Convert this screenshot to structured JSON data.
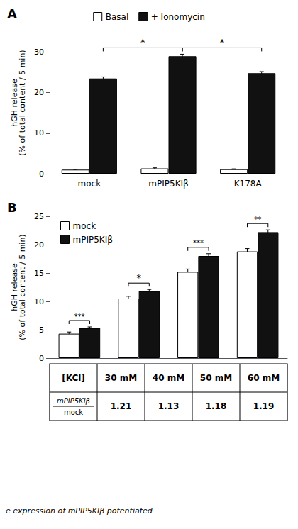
{
  "chart_data": [
    {
      "type": "bar",
      "title": "A",
      "categories": [
        "mock",
        "mPIP5KIβ",
        "K178A"
      ],
      "series": [
        {
          "name": "Basal",
          "color": "#ffffff",
          "values": [
            1.0,
            1.3,
            1.1
          ],
          "errors": [
            0.1,
            0.15,
            0.1
          ]
        },
        {
          "name": "+ Ionomycin",
          "color": "#111111",
          "values": [
            23.5,
            29.0,
            24.8
          ],
          "errors": [
            0.4,
            0.5,
            0.4
          ]
        }
      ],
      "ylabel": "hGH release\n(% of total content / 5 min)",
      "ylim": [
        0,
        35
      ],
      "yticks": [
        0,
        10,
        20,
        30
      ],
      "grid": false,
      "legend": "top",
      "annotations": [
        {
          "text": "*",
          "series": "+ Ionomycin",
          "between": [
            "mock",
            "mPIP5KIβ"
          ]
        },
        {
          "text": "*",
          "series": "+ Ionomycin",
          "between": [
            "mPIP5KIβ",
            "K178A"
          ]
        }
      ]
    },
    {
      "type": "bar",
      "title": "B",
      "categories": [
        "30 mM",
        "40 mM",
        "50 mM",
        "60 mM"
      ],
      "series": [
        {
          "name": "mock",
          "color": "#ffffff",
          "values": [
            4.3,
            10.5,
            15.2,
            18.8
          ],
          "errors": [
            0.3,
            0.4,
            0.5,
            0.5
          ]
        },
        {
          "name": "mPIP5KIβ",
          "color": "#111111",
          "values": [
            5.3,
            11.8,
            18.0,
            22.2
          ],
          "errors": [
            0.2,
            0.3,
            0.4,
            0.4
          ]
        }
      ],
      "ylabel": "hGH release\n(% of total content / 5 min)",
      "ylim": [
        0,
        25
      ],
      "yticks": [
        0,
        5,
        10,
        15,
        20,
        25
      ],
      "grid": false,
      "legend": "left",
      "tick_labels": "y",
      "annotations": [
        {
          "text": "***",
          "category": "30 mM",
          "between": [
            "mock",
            "mPIP5KIβ"
          ]
        },
        {
          "text": "*",
          "category": "40 mM",
          "between": [
            "mock",
            "mPIP5KIβ"
          ]
        },
        {
          "text": "***",
          "category": "50 mM",
          "between": [
            "mock",
            "mPIP5KIβ"
          ]
        },
        {
          "text": "**",
          "category": "60 mM",
          "between": [
            "mock",
            "mPIP5KIβ"
          ]
        }
      ],
      "table": {
        "header": [
          "[KCl]",
          "30 mM",
          "40 mM",
          "50 mM",
          "60 mM"
        ],
        "row_label": [
          "mPIP5KIβ",
          "mock"
        ],
        "values": [
          1.21,
          1.13,
          1.18,
          1.19
        ]
      },
      "caption": "e expression of mPIP5KIβ potentiated"
    }
  ]
}
